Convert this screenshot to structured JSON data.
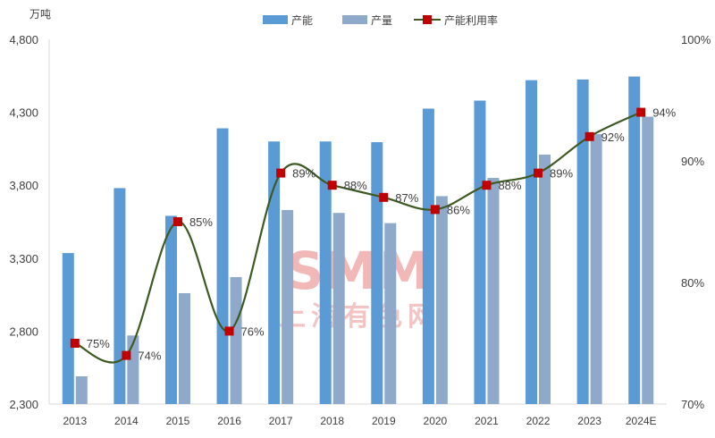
{
  "chart_data": {
    "type": "bar",
    "title": "",
    "unit_left": "万吨",
    "categories": [
      "2013",
      "2014",
      "2015",
      "2016",
      "2017",
      "2018",
      "2019",
      "2020",
      "2021",
      "2022",
      "2023",
      "2024E"
    ],
    "series": [
      {
        "name": "产能",
        "type": "bar",
        "axis": "left",
        "color": "#5b9bd5",
        "values": [
          3335,
          3780,
          3590,
          4190,
          4100,
          4100,
          4095,
          4325,
          4380,
          4520,
          4525,
          4545
        ]
      },
      {
        "name": "产量",
        "type": "bar",
        "axis": "left",
        "color": "#8ea9c9",
        "values": [
          2490,
          2770,
          3060,
          3170,
          3630,
          3610,
          3540,
          3725,
          3850,
          4010,
          4150,
          4270
        ]
      },
      {
        "name": "产能利用率",
        "type": "line",
        "axis": "right",
        "color": "#3e5a23",
        "marker_color": "#c00000",
        "values": [
          75,
          74,
          85,
          76,
          89,
          88,
          87,
          86,
          88,
          89,
          92,
          94
        ],
        "labels": [
          "75%",
          "74%",
          "85%",
          "76%",
          "89%",
          "88%",
          "87%",
          "86%",
          "88%",
          "89%",
          "92%",
          "94%"
        ]
      }
    ],
    "y_left": {
      "min": 2300,
      "max": 4800,
      "ticks": [
        "2,300",
        "2,800",
        "3,300",
        "3,800",
        "4,300",
        "4,800"
      ]
    },
    "y_right": {
      "min": 70,
      "max": 100,
      "ticks": [
        "70%",
        "80%",
        "90%",
        "100%"
      ]
    },
    "legend_position": "top-center",
    "grid": false
  },
  "watermark": {
    "main": "SMM",
    "sub": "上海有色网"
  }
}
